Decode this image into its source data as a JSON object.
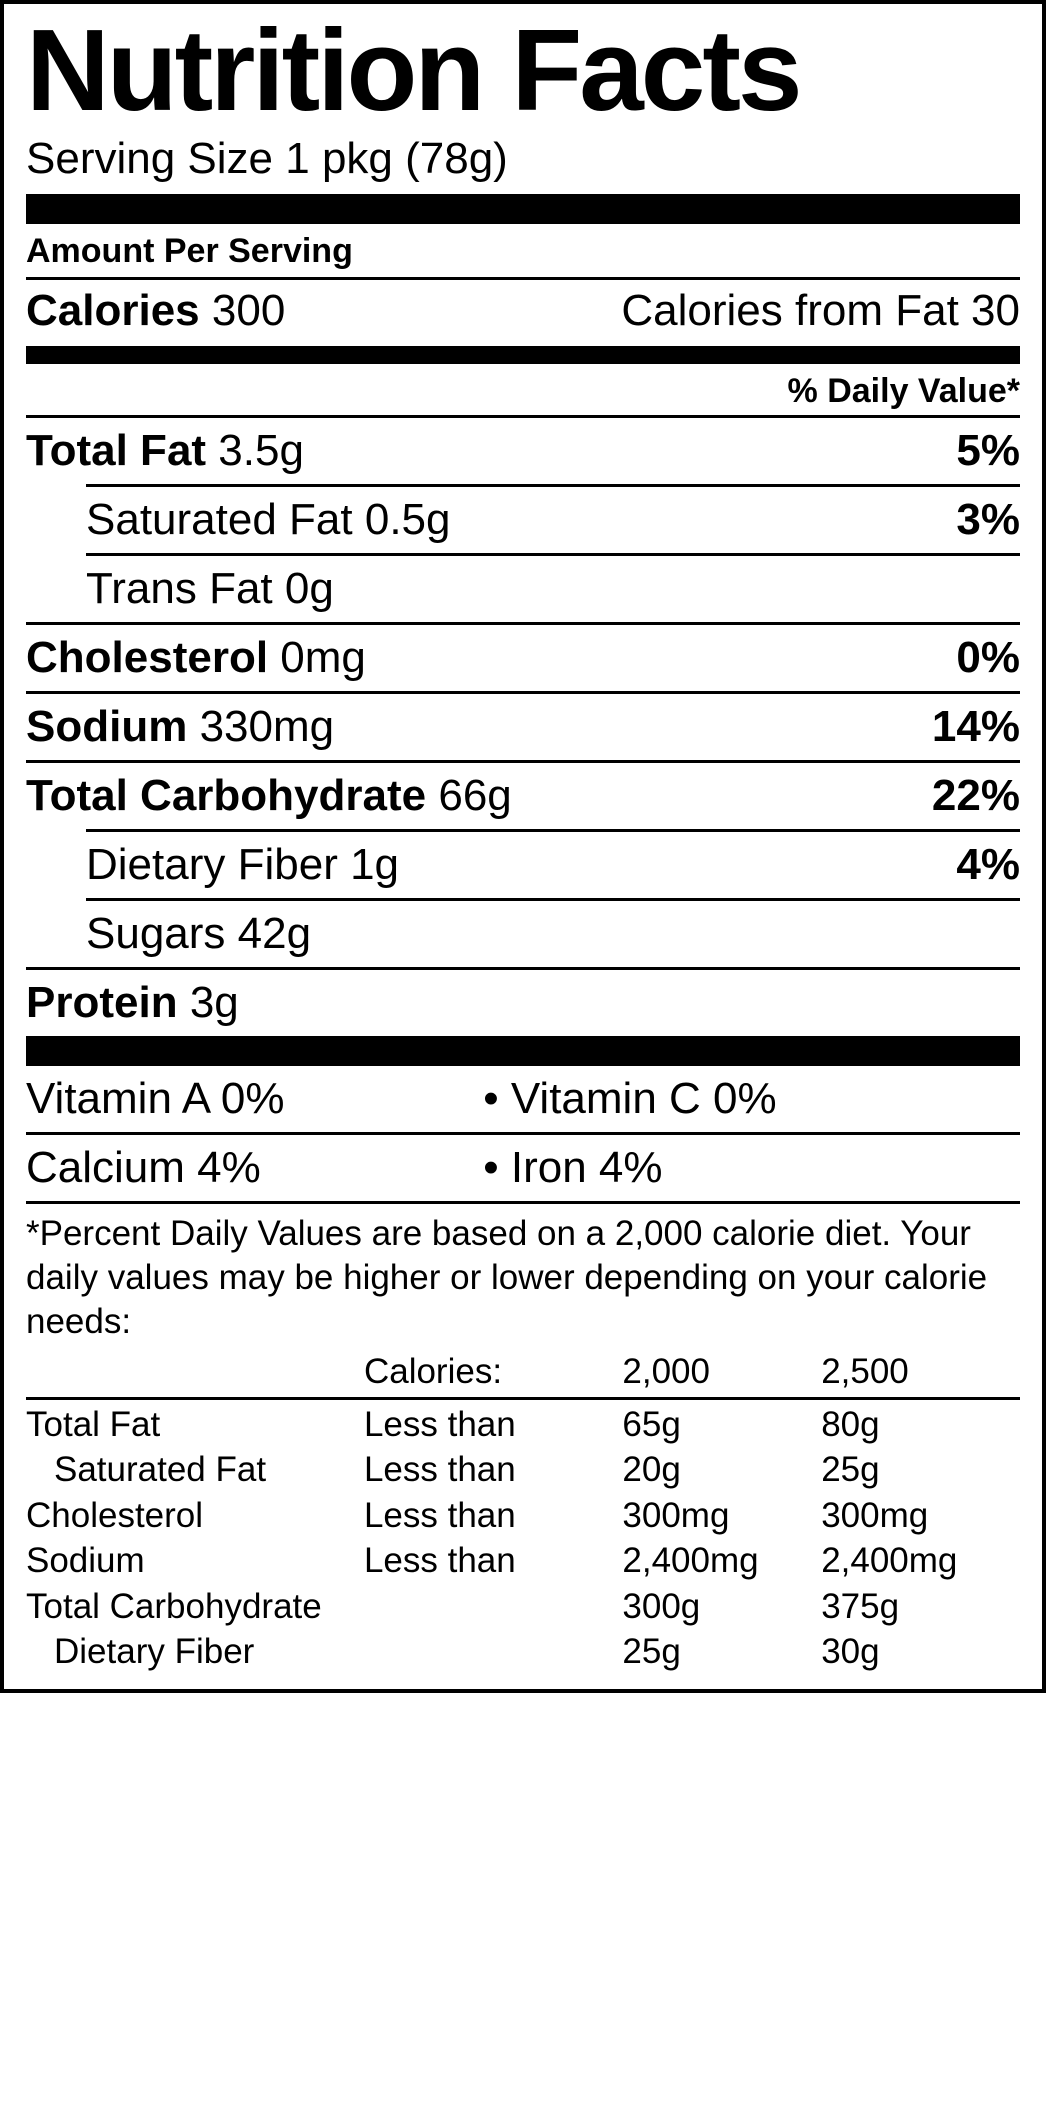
{
  "title": "Nutrition Facts",
  "serving_label": "Serving Size",
  "serving_value": "1 pkg (78g)",
  "amount_per_serving": "Amount Per Serving",
  "calories_label": "Calories",
  "calories_value": "300",
  "calories_fat_label": "Calories from Fat",
  "calories_fat_value": "30",
  "dv_header": "% Daily Value*",
  "nutrients": {
    "total_fat": {
      "label": "Total Fat",
      "value": "3.5g",
      "pct": "5%"
    },
    "sat_fat": {
      "label": "Saturated Fat",
      "value": "0.5g",
      "pct": "3%"
    },
    "trans_fat": {
      "label": "Trans Fat",
      "value": "0g",
      "pct": ""
    },
    "cholesterol": {
      "label": "Cholesterol",
      "value": "0mg",
      "pct": "0%"
    },
    "sodium": {
      "label": "Sodium",
      "value": "330mg",
      "pct": "14%"
    },
    "total_carb": {
      "label": "Total Carbohydrate",
      "value": "66g",
      "pct": "22%"
    },
    "fiber": {
      "label": "Dietary Fiber",
      "value": "1g",
      "pct": "4%"
    },
    "sugars": {
      "label": "Sugars",
      "value": "42g",
      "pct": ""
    },
    "protein": {
      "label": "Protein",
      "value": "3g",
      "pct": ""
    }
  },
  "vitamins": {
    "a": "Vitamin A 0%",
    "c": "Vitamin C 0%",
    "calcium": "Calcium 4%",
    "iron": "Iron 4%"
  },
  "bullet": "•",
  "footnote": "*Percent Daily Values are based on a 2,000 calorie diet. Your daily values may be higher or lower depending on your calorie needs:",
  "ref_header": {
    "c1": "",
    "c2": "Calories:",
    "c3": "2,000",
    "c4": "2,500"
  },
  "ref_rows": [
    {
      "c1": "Total Fat",
      "c2": "Less than",
      "c3": "65g",
      "c4": "80g",
      "sub": false
    },
    {
      "c1": "Saturated Fat",
      "c2": "Less than",
      "c3": "20g",
      "c4": "25g",
      "sub": true
    },
    {
      "c1": "Cholesterol",
      "c2": "Less than",
      "c3": "300mg",
      "c4": "300mg",
      "sub": false
    },
    {
      "c1": "Sodium",
      "c2": "Less than",
      "c3": "2,400mg",
      "c4": "2,400mg",
      "sub": false
    },
    {
      "c1": "Total Carbohydrate",
      "c2": "",
      "c3": "300g",
      "c4": "375g",
      "sub": false
    },
    {
      "c1": "Dietary Fiber",
      "c2": "",
      "c3": "25g",
      "c4": "30g",
      "sub": true
    }
  ],
  "colors": {
    "text": "#000000",
    "bg": "#ffffff",
    "rule": "#000000"
  }
}
